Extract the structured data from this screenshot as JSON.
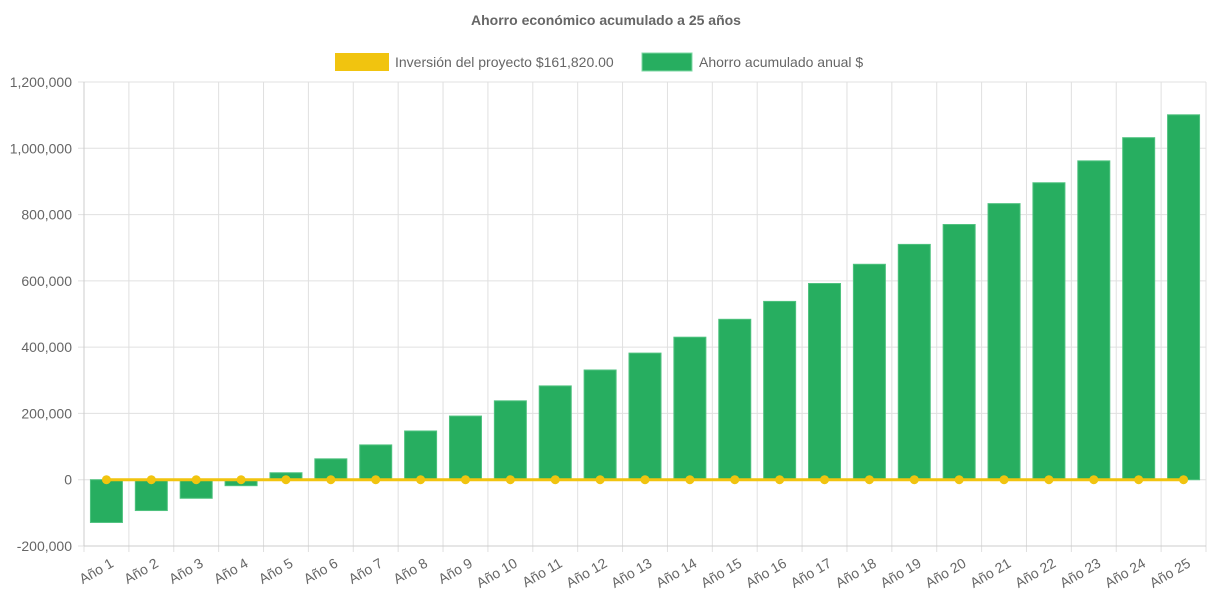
{
  "chart_data": {
    "type": "bar",
    "title": "Ahorro económico acumulado a 25 años",
    "legend_position": "top",
    "grid": true,
    "ylim": [
      -200000,
      1200000
    ],
    "yticks": [
      "-200,000",
      "0",
      "200,000",
      "400,000",
      "600,000",
      "800,000",
      "1,000,000",
      "1,200,000"
    ],
    "ytick_values": [
      -200000,
      0,
      200000,
      400000,
      600000,
      800000,
      1000000,
      1200000
    ],
    "categories": [
      "Año 1",
      "Año 2",
      "Año 3",
      "Año 4",
      "Año 5",
      "Año 6",
      "Año 7",
      "Año 8",
      "Año 9",
      "Año 10",
      "Año 11",
      "Año 12",
      "Año 13",
      "Año 14",
      "Año 15",
      "Año 16",
      "Año 17",
      "Año 18",
      "Año 19",
      "Año 20",
      "Año 21",
      "Año 22",
      "Año 23",
      "Año 24",
      "Año 25"
    ],
    "series": [
      {
        "name": "Inversión del proyecto $161,820.00",
        "type": "line",
        "color": "#f1c40f",
        "values": [
          0,
          0,
          0,
          0,
          0,
          0,
          0,
          0,
          0,
          0,
          0,
          0,
          0,
          0,
          0,
          0,
          0,
          0,
          0,
          0,
          0,
          0,
          0,
          0,
          0
        ]
      },
      {
        "name": "Ahorro acumulado anual $",
        "type": "bar",
        "color": "#27ae60",
        "values": [
          -129000,
          -93000,
          -56000,
          -18000,
          21000,
          63000,
          105000,
          147000,
          192000,
          238000,
          283000,
          331000,
          382000,
          430000,
          484000,
          538000,
          592000,
          650000,
          710000,
          770000,
          833000,
          896000,
          962000,
          1032000,
          1101000
        ]
      }
    ]
  }
}
